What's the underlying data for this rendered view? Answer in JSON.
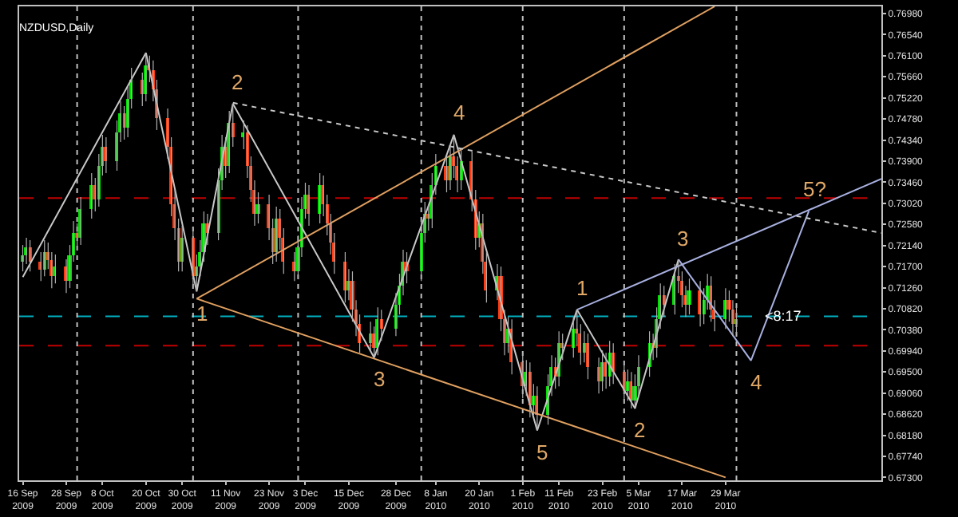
{
  "chart_data": {
    "type": "candlestick",
    "title": "NZDUSD,Daily",
    "x": [
      "2009-09-16",
      "2009-09-17",
      "2009-09-18",
      "2009-09-21",
      "2009-09-22",
      "2009-09-23",
      "2009-09-24",
      "2009-09-25",
      "2009-09-28",
      "2009-09-29",
      "2009-09-30",
      "2009-10-01",
      "2009-10-02",
      "2009-10-05",
      "2009-10-06",
      "2009-10-07",
      "2009-10-08",
      "2009-10-09",
      "2009-10-12",
      "2009-10-13",
      "2009-10-14",
      "2009-10-15",
      "2009-10-16",
      "2009-10-19",
      "2009-10-20",
      "2009-10-21",
      "2009-10-22",
      "2009-10-23",
      "2009-10-26",
      "2009-10-27",
      "2009-10-28",
      "2009-10-29",
      "2009-10-30",
      "2009-11-02",
      "2009-11-03",
      "2009-11-04",
      "2009-11-05",
      "2009-11-06",
      "2009-11-09",
      "2009-11-10",
      "2009-11-11",
      "2009-11-12",
      "2009-11-13",
      "2009-11-16",
      "2009-11-17",
      "2009-11-18",
      "2009-11-19",
      "2009-11-20",
      "2009-11-23",
      "2009-11-24",
      "2009-11-25",
      "2009-11-26",
      "2009-11-27",
      "2009-11-30",
      "2009-12-01",
      "2009-12-02",
      "2009-12-03",
      "2009-12-04",
      "2009-12-07",
      "2009-12-08",
      "2009-12-09",
      "2009-12-10",
      "2009-12-11",
      "2009-12-14",
      "2009-12-15",
      "2009-12-16",
      "2009-12-17",
      "2009-12-18",
      "2009-12-21",
      "2009-12-22",
      "2009-12-23",
      "2009-12-24",
      "2009-12-28",
      "2009-12-29",
      "2009-12-30",
      "2009-12-31",
      "2010-01-04",
      "2010-01-05",
      "2010-01-06",
      "2010-01-07",
      "2010-01-08",
      "2010-01-11",
      "2010-01-12",
      "2010-01-13",
      "2010-01-14",
      "2010-01-15",
      "2010-01-18",
      "2010-01-19",
      "2010-01-20",
      "2010-01-21",
      "2010-01-22",
      "2010-01-25",
      "2010-01-26",
      "2010-01-27",
      "2010-01-28",
      "2010-01-29",
      "2010-02-01",
      "2010-02-02",
      "2010-02-03",
      "2010-02-04",
      "2010-02-05",
      "2010-02-08",
      "2010-02-09",
      "2010-02-10",
      "2010-02-11",
      "2010-02-12",
      "2010-02-15",
      "2010-02-16",
      "2010-02-17",
      "2010-02-18",
      "2010-02-19",
      "2010-02-22",
      "2010-02-23",
      "2010-02-24",
      "2010-02-25",
      "2010-02-26",
      "2010-03-01",
      "2010-03-02",
      "2010-03-03",
      "2010-03-04",
      "2010-03-05",
      "2010-03-08",
      "2010-03-09",
      "2010-03-10",
      "2010-03-11",
      "2010-03-12",
      "2010-03-15",
      "2010-03-16",
      "2010-03-17",
      "2010-03-18",
      "2010-03-19",
      "2010-03-22",
      "2010-03-23",
      "2010-03-24",
      "2010-03-25",
      "2010-03-26",
      "2010-03-29",
      "2010-03-30",
      "2010-03-31",
      "2010-04-01"
    ],
    "ohlc": [
      [
        0.718,
        0.7215,
        0.716,
        0.7195
      ],
      [
        0.7195,
        0.723,
        0.7175,
        0.721
      ],
      [
        0.721,
        0.7225,
        0.716,
        0.718
      ],
      [
        0.718,
        0.72,
        0.714,
        0.7165
      ],
      [
        0.7165,
        0.7225,
        0.715,
        0.72
      ],
      [
        0.72,
        0.722,
        0.7165,
        0.7185
      ],
      [
        0.7185,
        0.72,
        0.7125,
        0.715
      ],
      [
        0.715,
        0.7195,
        0.7135,
        0.717
      ],
      [
        0.717,
        0.7185,
        0.7115,
        0.714
      ],
      [
        0.714,
        0.7215,
        0.7125,
        0.7195
      ],
      [
        0.7195,
        0.7265,
        0.718,
        0.724
      ],
      [
        0.724,
        0.726,
        0.7205,
        0.723
      ],
      [
        0.723,
        0.7315,
        0.7215,
        0.729
      ],
      [
        0.729,
        0.7365,
        0.727,
        0.734
      ],
      [
        0.734,
        0.7355,
        0.7285,
        0.731
      ],
      [
        0.731,
        0.7405,
        0.7295,
        0.738
      ],
      [
        0.738,
        0.7445,
        0.736,
        0.742
      ],
      [
        0.742,
        0.744,
        0.7365,
        0.739
      ],
      [
        0.739,
        0.7475,
        0.737,
        0.745
      ],
      [
        0.745,
        0.7515,
        0.743,
        0.749
      ],
      [
        0.749,
        0.7505,
        0.7435,
        0.746
      ],
      [
        0.746,
        0.7545,
        0.744,
        0.752
      ],
      [
        0.752,
        0.7585,
        0.75,
        0.756
      ],
      [
        0.756,
        0.7575,
        0.7505,
        0.753
      ],
      [
        0.753,
        0.7616,
        0.7515,
        0.759
      ],
      [
        0.759,
        0.761,
        0.7555,
        0.758
      ],
      [
        0.758,
        0.76,
        0.7515,
        0.754
      ],
      [
        0.754,
        0.756,
        0.7455,
        0.748
      ],
      [
        0.748,
        0.75,
        0.7395,
        0.742
      ],
      [
        0.742,
        0.744,
        0.7275,
        0.73
      ],
      [
        0.73,
        0.733,
        0.7225,
        0.725
      ],
      [
        0.725,
        0.727,
        0.716,
        0.718
      ],
      [
        0.718,
        0.7255,
        0.716,
        0.723
      ],
      [
        0.723,
        0.725,
        0.713,
        0.715
      ],
      [
        0.715,
        0.7195,
        0.7118,
        0.717
      ],
      [
        0.717,
        0.7225,
        0.715,
        0.72
      ],
      [
        0.72,
        0.7285,
        0.718,
        0.726
      ],
      [
        0.726,
        0.728,
        0.7215,
        0.724
      ],
      [
        0.724,
        0.7375,
        0.7225,
        0.735
      ],
      [
        0.735,
        0.7445,
        0.733,
        0.742
      ],
      [
        0.742,
        0.744,
        0.7355,
        0.738
      ],
      [
        0.738,
        0.7495,
        0.7365,
        0.747
      ],
      [
        0.747,
        0.751,
        0.742,
        0.744
      ],
      [
        0.744,
        0.7475,
        0.7415,
        0.745
      ],
      [
        0.745,
        0.7465,
        0.7355,
        0.738
      ],
      [
        0.738,
        0.74,
        0.7305,
        0.733
      ],
      [
        0.733,
        0.735,
        0.7255,
        0.728
      ],
      [
        0.728,
        0.7325,
        0.726,
        0.73
      ],
      [
        0.73,
        0.732,
        0.7225,
        0.725
      ],
      [
        0.725,
        0.727,
        0.7175,
        0.72
      ],
      [
        0.72,
        0.7295,
        0.718,
        0.727
      ],
      [
        0.727,
        0.729,
        0.7205,
        0.723
      ],
      [
        0.723,
        0.725,
        0.7155,
        0.718
      ],
      [
        0.718,
        0.72,
        0.714,
        0.716
      ],
      [
        0.716,
        0.7235,
        0.7145,
        0.721
      ],
      [
        0.721,
        0.7315,
        0.719,
        0.729
      ],
      [
        0.729,
        0.7345,
        0.727,
        0.732
      ],
      [
        0.732,
        0.734,
        0.7255,
        0.728
      ],
      [
        0.728,
        0.7365,
        0.726,
        0.734
      ],
      [
        0.734,
        0.736,
        0.7275,
        0.73
      ],
      [
        0.73,
        0.732,
        0.7235,
        0.726
      ],
      [
        0.726,
        0.728,
        0.7195,
        0.722
      ],
      [
        0.722,
        0.724,
        0.7155,
        0.718
      ],
      [
        0.718,
        0.72,
        0.7095,
        0.712
      ],
      [
        0.712,
        0.7165,
        0.71,
        0.714
      ],
      [
        0.714,
        0.716,
        0.7055,
        0.708
      ],
      [
        0.708,
        0.71,
        0.7025,
        0.705
      ],
      [
        0.705,
        0.707,
        0.699,
        0.701
      ],
      [
        0.701,
        0.7055,
        0.6995,
        0.703
      ],
      [
        0.703,
        0.7045,
        0.698,
        0.7
      ],
      [
        0.7,
        0.7085,
        0.6985,
        0.706
      ],
      [
        0.706,
        0.708,
        0.7015,
        0.704
      ],
      [
        0.704,
        0.7115,
        0.7025,
        0.709
      ],
      [
        0.709,
        0.7155,
        0.707,
        0.713
      ],
      [
        0.713,
        0.7205,
        0.711,
        0.718
      ],
      [
        0.718,
        0.72,
        0.7135,
        0.716
      ],
      [
        0.716,
        0.7265,
        0.714,
        0.724
      ],
      [
        0.724,
        0.7305,
        0.722,
        0.728
      ],
      [
        0.728,
        0.73,
        0.7245,
        0.727
      ],
      [
        0.727,
        0.7365,
        0.725,
        0.734
      ],
      [
        0.734,
        0.7405,
        0.732,
        0.738
      ],
      [
        0.738,
        0.74,
        0.7325,
        0.735
      ],
      [
        0.735,
        0.7425,
        0.733,
        0.74
      ],
      [
        0.74,
        0.7445,
        0.7355,
        0.738
      ],
      [
        0.738,
        0.74,
        0.7325,
        0.735
      ],
      [
        0.735,
        0.7415,
        0.733,
        0.739
      ],
      [
        0.739,
        0.741,
        0.7285,
        0.731
      ],
      [
        0.731,
        0.733,
        0.7205,
        0.723
      ],
      [
        0.723,
        0.7285,
        0.721,
        0.726
      ],
      [
        0.726,
        0.728,
        0.7155,
        0.718
      ],
      [
        0.718,
        0.72,
        0.7095,
        0.712
      ],
      [
        0.712,
        0.7175,
        0.71,
        0.715
      ],
      [
        0.715,
        0.717,
        0.7035,
        0.706
      ],
      [
        0.706,
        0.708,
        0.6985,
        0.701
      ],
      [
        0.701,
        0.7065,
        0.699,
        0.704
      ],
      [
        0.704,
        0.706,
        0.6945,
        0.697
      ],
      [
        0.697,
        0.699,
        0.6895,
        0.692
      ],
      [
        0.692,
        0.6975,
        0.69,
        0.695
      ],
      [
        0.695,
        0.697,
        0.6855,
        0.688
      ],
      [
        0.688,
        0.6925,
        0.686,
        0.69
      ],
      [
        0.69,
        0.692,
        0.6828,
        0.686
      ],
      [
        0.686,
        0.6945,
        0.684,
        0.692
      ],
      [
        0.692,
        0.6985,
        0.69,
        0.696
      ],
      [
        0.696,
        0.698,
        0.6915,
        0.694
      ],
      [
        0.694,
        0.7035,
        0.692,
        0.701
      ],
      [
        0.701,
        0.703,
        0.6975,
        0.7
      ],
      [
        0.7,
        0.7065,
        0.698,
        0.704
      ],
      [
        0.704,
        0.708,
        0.7005,
        0.703
      ],
      [
        0.703,
        0.705,
        0.6965,
        0.699
      ],
      [
        0.699,
        0.7035,
        0.697,
        0.701
      ],
      [
        0.701,
        0.703,
        0.6935,
        0.696
      ],
      [
        0.696,
        0.698,
        0.6905,
        0.693
      ],
      [
        0.693,
        0.6995,
        0.691,
        0.697
      ],
      [
        0.697,
        0.699,
        0.6915,
        0.694
      ],
      [
        0.694,
        0.7015,
        0.692,
        0.699
      ],
      [
        0.699,
        0.701,
        0.6925,
        0.695
      ],
      [
        0.695,
        0.697,
        0.6885,
        0.691
      ],
      [
        0.691,
        0.6955,
        0.689,
        0.693
      ],
      [
        0.693,
        0.695,
        0.6874,
        0.689
      ],
      [
        0.689,
        0.6945,
        0.6876,
        0.692
      ],
      [
        0.692,
        0.6985,
        0.69,
        0.696
      ],
      [
        0.696,
        0.7035,
        0.694,
        0.701
      ],
      [
        0.701,
        0.703,
        0.6975,
        0.7
      ],
      [
        0.7,
        0.7085,
        0.698,
        0.706
      ],
      [
        0.706,
        0.7135,
        0.704,
        0.711
      ],
      [
        0.711,
        0.713,
        0.7065,
        0.709
      ],
      [
        0.709,
        0.7175,
        0.707,
        0.715
      ],
      [
        0.715,
        0.7185,
        0.7115,
        0.714
      ],
      [
        0.714,
        0.716,
        0.7085,
        0.711
      ],
      [
        0.711,
        0.713,
        0.7065,
        0.709
      ],
      [
        0.709,
        0.7145,
        0.707,
        0.712
      ],
      [
        0.712,
        0.714,
        0.7045,
        0.707
      ],
      [
        0.707,
        0.7125,
        0.705,
        0.71
      ],
      [
        0.71,
        0.7155,
        0.708,
        0.713
      ],
      [
        0.713,
        0.715,
        0.7055,
        0.708
      ],
      [
        0.708,
        0.71,
        0.7035,
        0.706
      ],
      [
        0.706,
        0.7125,
        0.704,
        0.71
      ],
      [
        0.71,
        0.712,
        0.7055,
        0.708
      ],
      [
        0.708,
        0.71,
        0.7025,
        0.705
      ],
      [
        0.705,
        0.7085,
        0.703,
        0.706
      ]
    ],
    "series": [
      {
        "type": "line",
        "color": "#c8c8c8",
        "line_style": "solid",
        "x": [
          "2009-09-16",
          "2009-10-20",
          "2009-11-03",
          "2009-11-13",
          "2009-12-22",
          "2010-01-13",
          "2010-02-05",
          "2010-02-16",
          "2010-03-04",
          "2010-03-16"
        ],
        "values": [
          0.7148,
          0.7616,
          0.7118,
          0.751,
          0.698,
          0.7445,
          0.6828,
          0.708,
          0.6874,
          0.7185
        ]
      },
      {
        "type": "line",
        "color": "#a8b0e0",
        "line_style": "solid",
        "x": [
          "2010-03-16",
          "2010-04-05",
          "2010-04-21"
        ],
        "values": [
          0.7185,
          0.6974,
          0.7286
        ]
      },
      {
        "type": "line",
        "color": "#a8b0e0",
        "line_style": "solid",
        "x": [
          "2010-02-16",
          "2010-05-11"
        ],
        "values": [
          0.708,
          0.7353
        ]
      },
      {
        "type": "line",
        "color": "#e0a060",
        "line_style": "solid",
        "x": [
          "2009-11-03",
          "2010-03-26"
        ],
        "values": [
          0.7103,
          0.7713
        ]
      },
      {
        "type": "line",
        "color": "#e0a060",
        "line_style": "solid",
        "x": [
          "2009-11-03",
          "2010-03-29"
        ],
        "values": [
          0.7103,
          0.673
        ]
      },
      {
        "type": "line",
        "color": "#c8c8c8",
        "line_style": "dotted",
        "x": [
          "2009-11-13",
          "2010-05-11"
        ],
        "values": [
          0.7512,
          0.724
        ]
      }
    ],
    "annotations": [
      {
        "text": "1",
        "x": "2009-11-03",
        "y": 0.7118
      },
      {
        "text": "2",
        "x": "2009-11-13",
        "y": 0.751
      },
      {
        "text": "3",
        "x": "2009-12-22",
        "y": 0.698
      },
      {
        "text": "4",
        "x": "2010-01-13",
        "y": 0.7445
      },
      {
        "text": "5",
        "x": "2010-02-05",
        "y": 0.6828
      },
      {
        "text": "1",
        "x": "2010-02-16",
        "y": 0.708
      },
      {
        "text": "2",
        "x": "2010-03-04",
        "y": 0.6874
      },
      {
        "text": "3",
        "x": "2010-03-16",
        "y": 0.7185
      },
      {
        "text": "4",
        "x": "2010-04-05",
        "y": 0.6974
      },
      {
        "text": "5?",
        "x": "2010-04-21",
        "y": 0.7286
      },
      {
        "text": "<8:17",
        "x": "2010-04-08",
        "y": 0.7066
      }
    ],
    "ref_lines": [
      {
        "axis": "y",
        "value": 0.7313,
        "color": "#c00000",
        "line_style": "dashed"
      },
      {
        "axis": "y",
        "value": 0.7005,
        "color": "#c00000",
        "line_style": "dashed"
      },
      {
        "axis": "y",
        "value": 0.7066,
        "color": "#00b0c0",
        "line_style": "dashed"
      },
      {
        "axis": "x",
        "value": "2009-10-01",
        "color": "#c0c0c0",
        "line_style": "dotted"
      },
      {
        "axis": "x",
        "value": "2009-11-02",
        "color": "#c0c0c0",
        "line_style": "dotted"
      },
      {
        "axis": "x",
        "value": "2009-12-01",
        "color": "#c0c0c0",
        "line_style": "dotted"
      },
      {
        "axis": "x",
        "value": "2010-01-04",
        "color": "#c0c0c0",
        "line_style": "dotted"
      },
      {
        "axis": "x",
        "value": "2010-02-01",
        "color": "#c0c0c0",
        "line_style": "dotted"
      },
      {
        "axis": "x",
        "value": "2010-03-01",
        "color": "#c0c0c0",
        "line_style": "dotted"
      },
      {
        "axis": "x",
        "value": "2010-04-01",
        "color": "#c0c0c0",
        "line_style": "dotted"
      }
    ],
    "xlim": [
      "2009-09-15",
      "2010-05-11"
    ],
    "xticks": [
      {
        "value": "2009-09-16",
        "label": "16 Sep 2009"
      },
      {
        "value": "2009-09-28",
        "label": "28 Sep 2009"
      },
      {
        "value": "2009-10-08",
        "label": "8 Oct 2009"
      },
      {
        "value": "2009-10-20",
        "label": "20 Oct 2009"
      },
      {
        "value": "2009-10-30",
        "label": "30 Oct 2009"
      },
      {
        "value": "2009-11-11",
        "label": "11 Nov 2009"
      },
      {
        "value": "2009-11-23",
        "label": "23 Nov 2009"
      },
      {
        "value": "2009-12-03",
        "label": "3 Dec 2009"
      },
      {
        "value": "2009-12-15",
        "label": "15 Dec 2009"
      },
      {
        "value": "2009-12-28",
        "label": "28 Dec 2009"
      },
      {
        "value": "2010-01-08",
        "label": "8 Jan 2010"
      },
      {
        "value": "2010-01-20",
        "label": "20 Jan 2010"
      },
      {
        "value": "2010-02-01",
        "label": "1 Feb 2010"
      },
      {
        "value": "2010-02-11",
        "label": "11 Feb 2010"
      },
      {
        "value": "2010-02-23",
        "label": "23 Feb 2010"
      },
      {
        "value": "2010-03-05",
        "label": "5 Mar 2010"
      },
      {
        "value": "2010-03-17",
        "label": "17 Mar 2010"
      },
      {
        "value": "2010-03-29",
        "label": "29 Mar 2010"
      }
    ],
    "ylim": [
      0.6724,
      0.7713
    ],
    "yticks": [
      {
        "value": 0.673,
        "label": "0.67300"
      },
      {
        "value": 0.6774,
        "label": "0.67740"
      },
      {
        "value": 0.6818,
        "label": "0.68180"
      },
      {
        "value": 0.6862,
        "label": "0.68620"
      },
      {
        "value": 0.6906,
        "label": "0.69060"
      },
      {
        "value": 0.695,
        "label": "0.69500"
      },
      {
        "value": 0.6994,
        "label": "0.69940"
      },
      {
        "value": 0.7038,
        "label": "0.70380"
      },
      {
        "value": 0.7082,
        "label": "0.70820"
      },
      {
        "value": 0.7126,
        "label": "0.71260"
      },
      {
        "value": 0.717,
        "label": "0.71700"
      },
      {
        "value": 0.7214,
        "label": "0.72140"
      },
      {
        "value": 0.7258,
        "label": "0.72580"
      },
      {
        "value": 0.7302,
        "label": "0.73020"
      },
      {
        "value": 0.7346,
        "label": "0.73460"
      },
      {
        "value": 0.739,
        "label": "0.73900"
      },
      {
        "value": 0.7434,
        "label": "0.74340"
      },
      {
        "value": 0.7478,
        "label": "0.74780"
      },
      {
        "value": 0.7522,
        "label": "0.75220"
      },
      {
        "value": 0.7566,
        "label": "0.75660"
      },
      {
        "value": 0.761,
        "label": "0.76100"
      },
      {
        "value": 0.7654,
        "label": "0.76540"
      },
      {
        "value": 0.7698,
        "label": "0.76980"
      }
    ],
    "grid": false
  }
}
